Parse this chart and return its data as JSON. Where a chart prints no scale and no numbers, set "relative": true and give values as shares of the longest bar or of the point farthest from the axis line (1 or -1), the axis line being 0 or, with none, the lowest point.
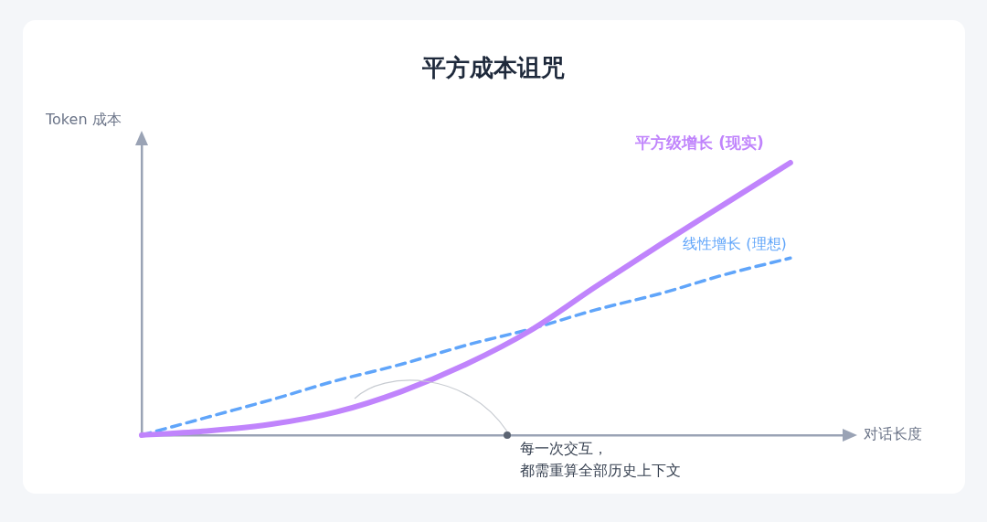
{
  "chart_data": {
    "type": "line",
    "title": "平方成本诅咒",
    "xlabel": "对话长度",
    "ylabel": "Token 成本",
    "relative": true,
    "tick_labels": false,
    "categories": [
      null,
      null,
      null,
      null,
      null,
      null,
      null,
      null,
      null,
      null,
      null
    ],
    "series": [
      {
        "name": "平方级增长 (现实)",
        "color": "#c084fc",
        "line_style": "solid",
        "values": [
          0,
          0.015,
          0.04,
          0.085,
          0.16,
          0.26,
          0.385,
          0.545,
          0.7,
          0.85,
          1
        ]
      },
      {
        "name": "线性增长 (理想)",
        "color": "#60a5fa",
        "line_style": "dashed",
        "values": [
          0,
          0.065,
          0.13,
          0.2,
          0.26,
          0.33,
          0.39,
          0.46,
          0.52,
          0.59,
          0.65
        ]
      }
    ],
    "annotations": [
      "每一次交互，都需重算全部历史上下文"
    ]
  }
}
